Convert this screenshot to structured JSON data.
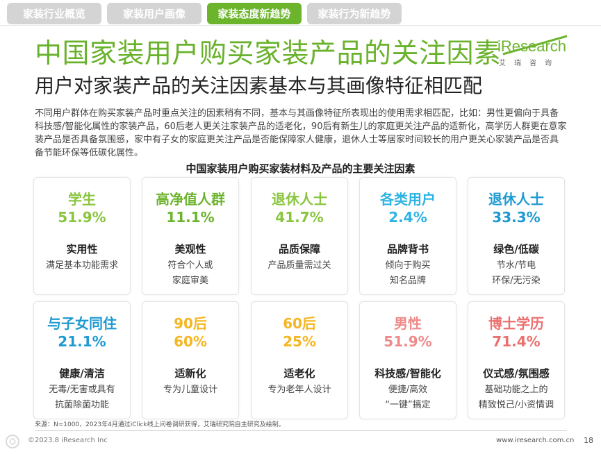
{
  "tabs": [
    {
      "label": "家装行业概览",
      "active": false
    },
    {
      "label": "家装用户画像",
      "active": false
    },
    {
      "label": "家装态度新趋势",
      "active": true
    },
    {
      "label": "家装行为新趋势",
      "active": false
    }
  ],
  "header": {
    "title": "中国家装用户购买家装产品的关注因素",
    "subtitle": "用户对家装产品的关注因素基本与其画像特征相匹配"
  },
  "logo": {
    "brand": "iResearch",
    "cn": "艾瑞咨询"
  },
  "description": "不同用户群体在购买家装产品时重点关注的因素稍有不同，基本与其画像特征所表现出的使用需求相匹配，比如：男性更偏向于具备科技感/智能化属性的家装产品，60后老人更关注家装产品的适老化，90后有新生儿的家庭更关注产品的适新化，高学历人群更在意家装产品是否具备氛围感，家中有子女的家庭更关注产品是否能保障家人健康，退休人士等居家时间较长的用户更关心家装产品是否具备节能环保等低碳化属性。",
  "chart_title": "中国家装用户购买家装材料及产品的主要关注因素",
  "cards": [
    {
      "group": "学生",
      "pct": "51.9%",
      "factor": "实用性",
      "detail1": "满足基本功能需求",
      "detail2": "",
      "color": "#8ac53f"
    },
    {
      "group": "高净值人群",
      "pct": "11.1%",
      "factor": "美观性",
      "detail1": "符合个人或",
      "detail2": "家庭审美",
      "color": "#6cb42c"
    },
    {
      "group": "退休人士",
      "pct": "41.7%",
      "factor": "品质保障",
      "detail1": "产品质量需过关",
      "detail2": "",
      "color": "#8ac53f"
    },
    {
      "group": "各类用户",
      "pct": "2.4%",
      "factor": "品牌背书",
      "detail1": "倾向于购买",
      "detail2": "知名品牌",
      "color": "#2db3e3"
    },
    {
      "group": "退休人士",
      "pct": "33.3%",
      "factor": "绿色/低碳",
      "detail1": "节水/节电",
      "detail2": "环保/无污染",
      "color": "#1f9ad1"
    },
    {
      "group": "与子女同住",
      "pct": "21.1%",
      "factor": "健康/清洁",
      "detail1": "无毒/无害或具有",
      "detail2": "抗菌除菌功能",
      "color": "#1f9ad1"
    },
    {
      "group": "90后",
      "pct": "60%",
      "factor": "适新化",
      "detail1": "专为儿童设计",
      "detail2": "",
      "color": "#f5b623"
    },
    {
      "group": "60后",
      "pct": "25%",
      "factor": "适老化",
      "detail1": "专为老年人设计",
      "detail2": "",
      "color": "#f5b623"
    },
    {
      "group": "男性",
      "pct": "51.9%",
      "factor": "科技感/智能化",
      "detail1": "便捷/高效",
      "detail2": "“一键”搞定",
      "color": "#f08a8a"
    },
    {
      "group": "博士学历",
      "pct": "71.4%",
      "factor": "仪式感/氛围感",
      "detail1": "基础功能之上的",
      "detail2": "精致悦己/小资情调",
      "color": "#ec6f6f"
    }
  ],
  "footer": {
    "source": "来源：N=1000，2023年4月通过iClick线上问卷调研获得，艾瑞研究院自主研究及绘制。",
    "copyright": "©2023.8 iResearch Inc",
    "url": "www.iresearch.com.cn",
    "page": "18"
  }
}
